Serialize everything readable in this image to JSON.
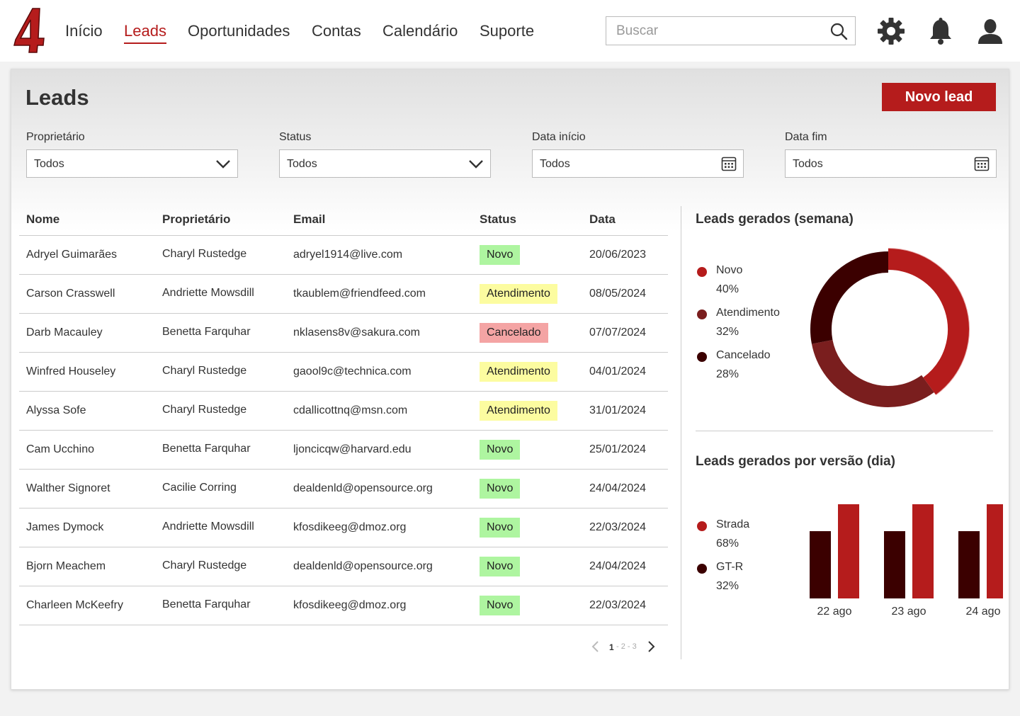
{
  "brand": {
    "logo_text": "4",
    "color": "#b51c1c"
  },
  "nav": {
    "items": [
      {
        "label": "Início",
        "active": false
      },
      {
        "label": "Leads",
        "active": true
      },
      {
        "label": "Oportunidades",
        "active": false
      },
      {
        "label": "Contas",
        "active": false
      },
      {
        "label": "Calendário",
        "active": false
      },
      {
        "label": "Suporte",
        "active": false
      }
    ],
    "search_placeholder": "Buscar",
    "icons": [
      "search-icon",
      "gear-icon",
      "bell-icon",
      "user-icon"
    ]
  },
  "page": {
    "title": "Leads",
    "new_button": "Novo lead"
  },
  "filters": [
    {
      "label": "Proprietário",
      "value": "Todos",
      "icon": "chevron-down-icon"
    },
    {
      "label": "Status",
      "value": "Todos",
      "icon": "chevron-down-icon"
    },
    {
      "label": "Data início",
      "value": "Todos",
      "icon": "calendar-icon"
    },
    {
      "label": "Data fim",
      "value": "Todos",
      "icon": "calendar-icon"
    }
  ],
  "table": {
    "headers": [
      "Nome",
      "Proprietário",
      "Email",
      "Status",
      "Data"
    ],
    "rows": [
      {
        "name": "Adryel Guimarães",
        "owner": "Charyl Rustedge",
        "email": "adryel1914@live.com",
        "status": "Novo",
        "date": "20/06/2023"
      },
      {
        "name": "Carson Crasswell",
        "owner": "Andriette Mowsdill",
        "email": "tkaublem@friendfeed.com",
        "status": "Atendimento",
        "date": "08/05/2024"
      },
      {
        "name": "Darb Macauley",
        "owner": "Benetta Farquhar",
        "email": "nklasens8v@sakura.com",
        "status": "Cancelado",
        "date": "07/07/2024"
      },
      {
        "name": "Winfred Houseley",
        "owner": "Charyl Rustedge",
        "email": "gaool9c@technica.com",
        "status": "Atendimento",
        "date": "04/01/2024"
      },
      {
        "name": "Alyssa Sofe",
        "owner": "Charyl Rustedge",
        "email": "cdallicottnq@msn.com",
        "status": "Atendimento",
        "date": "31/01/2024"
      },
      {
        "name": "Cam Ucchino",
        "owner": "Benetta Farquhar",
        "email": "ljoncicqw@harvard.edu",
        "status": "Novo",
        "date": "25/01/2024"
      },
      {
        "name": "Walther Signoret",
        "owner": "Cacilie Corring",
        "email": "dealdenld@opensource.org",
        "status": "Novo",
        "date": "24/04/2024"
      },
      {
        "name": "James Dymock",
        "owner": "Andriette Mowsdill",
        "email": "kfosdikeeg@dmoz.org",
        "status": "Novo",
        "date": "22/03/2024"
      },
      {
        "name": "Bjorn Meachem",
        "owner": "Charyl Rustedge",
        "email": "dealdenld@opensource.org",
        "status": "Novo",
        "date": "24/04/2024"
      },
      {
        "name": "Charleen McKeefry",
        "owner": "Benetta Farquhar",
        "email": "kfosdikeeg@dmoz.org",
        "status": "Novo",
        "date": "22/03/2024"
      }
    ]
  },
  "pagination": {
    "current": "1",
    "rest": "- 2 - 3"
  },
  "status_colors": {
    "Novo": "#aef5a0",
    "Atendimento": "#fcfca0",
    "Cancelado": "#f4a4a4"
  },
  "chart_data": [
    {
      "type": "pie",
      "title": "Leads gerados (semana)",
      "labels": [
        "Novo",
        "Atendimento",
        "Cancelado"
      ],
      "values": [
        40,
        32,
        28
      ],
      "value_labels": [
        "40%",
        "32%",
        "28%"
      ],
      "colors": [
        "#b51c1c",
        "#7a1e1e",
        "#3b0000"
      ],
      "legend": "left"
    },
    {
      "type": "bar",
      "title": "Leads gerados por versão (dia)",
      "categories": [
        "22 ago",
        "23 ago",
        "24 ago"
      ],
      "series": [
        {
          "name": "Strada",
          "values": [
            68,
            68,
            68
          ],
          "label": "68%",
          "color": "#b51c1c"
        },
        {
          "name": "GT-R",
          "values": [
            32,
            32,
            32
          ],
          "label": "32%",
          "color": "#3b0000"
        }
      ],
      "legend": "left"
    }
  ]
}
